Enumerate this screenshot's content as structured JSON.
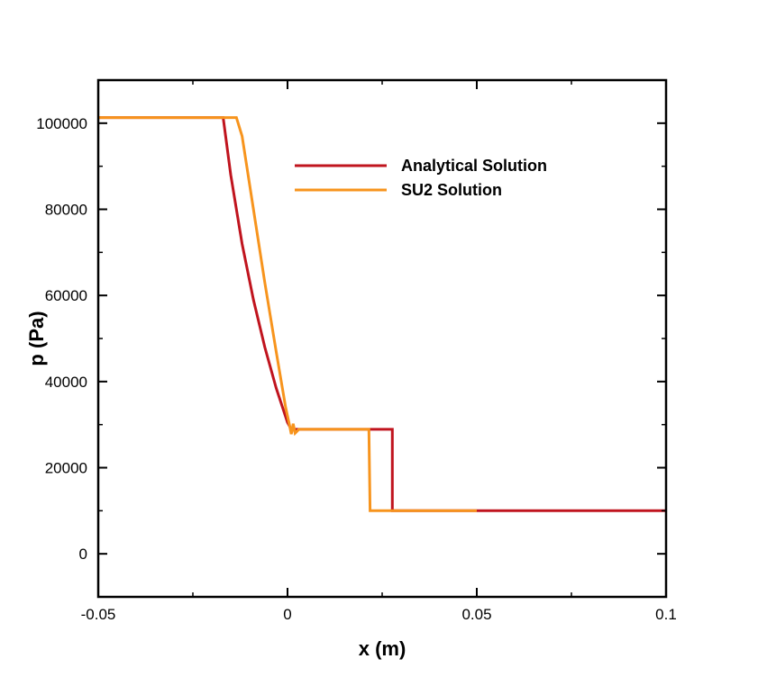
{
  "chart_data": {
    "type": "line",
    "title": "",
    "xlabel": "x (m)",
    "ylabel": "p (Pa)",
    "xlim": [
      -0.05,
      0.1
    ],
    "ylim": [
      -10000,
      110000
    ],
    "x_ticks": [
      -0.05,
      0,
      0.05,
      0.1
    ],
    "x_tick_labels": [
      "-0.05",
      "0",
      "0.05",
      "0.1"
    ],
    "y_ticks": [
      0,
      20000,
      40000,
      60000,
      80000,
      100000
    ],
    "y_tick_labels": [
      "0",
      "20000",
      "40000",
      "60000",
      "80000",
      "100000"
    ],
    "grid": false,
    "legend_position": "upper-right",
    "series": [
      {
        "name": "Analytical Solution",
        "color": "#c0141e",
        "x": [
          -0.05,
          -0.017,
          -0.015,
          -0.012,
          -0.009,
          -0.006,
          -0.003,
          0.0,
          0.001,
          0.0277,
          0.0277,
          0.1
        ],
        "y": [
          101300,
          101300,
          88000,
          72000,
          59000,
          48000,
          38500,
          30500,
          28900,
          28900,
          10000,
          10000
        ]
      },
      {
        "name": "SU2 Solution",
        "color": "#f7941d",
        "x": [
          -0.05,
          -0.0135,
          -0.012,
          -0.009,
          -0.006,
          -0.003,
          -0.0005,
          0.0005,
          0.001,
          0.0015,
          0.002,
          0.003,
          0.0215,
          0.0218,
          0.05
        ],
        "y": [
          101300,
          101300,
          97000,
          80000,
          63000,
          47000,
          34000,
          30000,
          27800,
          30200,
          28000,
          28900,
          28900,
          10000,
          10000
        ]
      }
    ]
  }
}
